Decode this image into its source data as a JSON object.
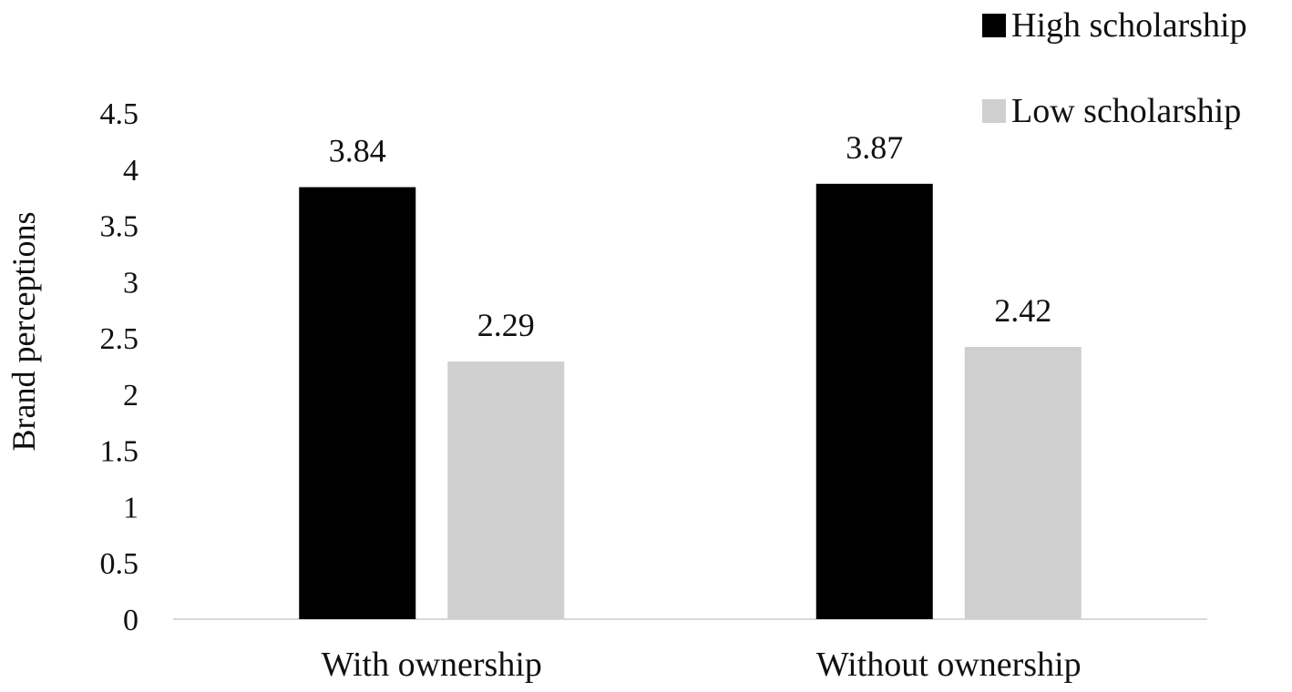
{
  "chart_data": {
    "type": "bar",
    "categories": [
      "With ownership",
      "Without ownership"
    ],
    "series": [
      {
        "name": "High scholarship",
        "values": [
          3.84,
          3.87
        ],
        "color": "#000000"
      },
      {
        "name": "Low scholarship",
        "values": [
          2.29,
          2.42
        ],
        "color": "#d0cfd0"
      }
    ],
    "data_labels": [
      [
        "3.84",
        "3.87"
      ],
      [
        "2.29",
        "2.42"
      ]
    ],
    "ylabel": "Brand perceptions",
    "xlabel": "",
    "ylim": [
      0,
      4.5
    ],
    "yticks": [
      "0",
      "0.5",
      "1",
      "1.5",
      "2",
      "2.5",
      "3",
      "3.5",
      "4",
      "4.5"
    ],
    "grid": false,
    "legend_position": "top-right",
    "axis_color": "#d9d9d9"
  }
}
